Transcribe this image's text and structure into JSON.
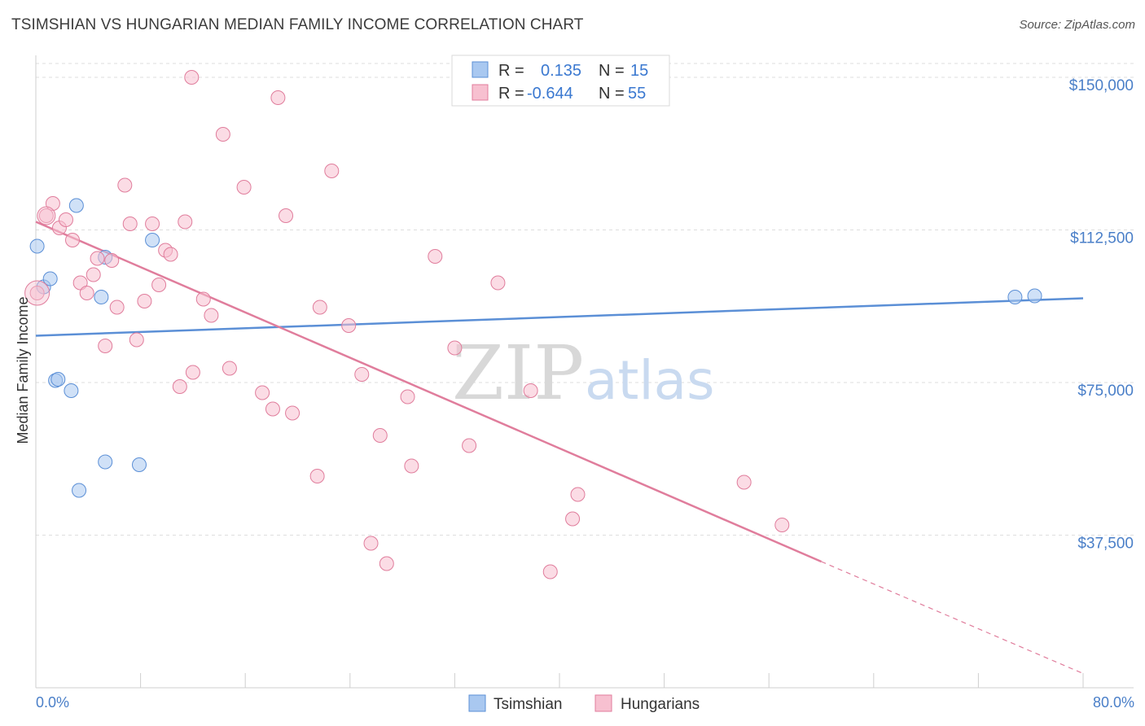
{
  "title": "TSIMSHIAN VS HUNGARIAN MEDIAN FAMILY INCOME CORRELATION CHART",
  "source": "Source: ZipAtlas.com",
  "watermark": {
    "zip": "ZIP",
    "atlas": "atlas"
  },
  "legend": {
    "r_label": "R =",
    "n_label": "N =",
    "rows": [
      {
        "name": "Tsimshian",
        "r": "0.135",
        "n": "15",
        "color": "#a9c8f0",
        "stroke": "#5b8fd6"
      },
      {
        "name": "Hungarians",
        "r": "-0.644",
        "n": "55",
        "color": "#f7c0d0",
        "stroke": "#e07d9c"
      }
    ]
  },
  "chart_data": {
    "type": "scatter",
    "title": "TSIMSHIAN VS HUNGARIAN MEDIAN FAMILY INCOME CORRELATION CHART",
    "xlabel": "",
    "ylabel": "Median Family Income",
    "xlim": [
      0,
      80
    ],
    "ylim": [
      0,
      155000
    ],
    "x_tick_labels": [
      "0.0%",
      "80.0%"
    ],
    "y_ticks": [
      37500,
      75000,
      112500,
      150000
    ],
    "y_tick_labels": [
      "$37,500",
      "$75,000",
      "$112,500",
      "$150,000"
    ],
    "grid": true,
    "series": [
      {
        "name": "Tsimshian",
        "color": "#5b8fd6",
        "points": [
          [
            0.1,
            108500
          ],
          [
            0.6,
            98500
          ],
          [
            1.1,
            100500
          ],
          [
            1.5,
            75500
          ],
          [
            1.7,
            75800
          ],
          [
            2.7,
            73000
          ],
          [
            3.1,
            118500
          ],
          [
            3.3,
            48500
          ],
          [
            5.3,
            105800
          ],
          [
            5.0,
            96000
          ],
          [
            5.3,
            55500
          ],
          [
            7.9,
            54800
          ],
          [
            8.9,
            110000
          ],
          [
            74.8,
            96000
          ],
          [
            76.3,
            96300
          ]
        ],
        "trend": {
          "x": [
            0,
            80
          ],
          "y": [
            86500,
            95700
          ]
        }
      },
      {
        "name": "Hungarians",
        "color": "#e07d9c",
        "points": [
          [
            0.1,
            97000
          ],
          [
            0.8,
            116000
          ],
          [
            1.3,
            119000
          ],
          [
            1.8,
            113000
          ],
          [
            2.3,
            115000
          ],
          [
            2.8,
            110000
          ],
          [
            3.4,
            99500
          ],
          [
            3.9,
            97000
          ],
          [
            4.4,
            101500
          ],
          [
            4.7,
            105500
          ],
          [
            5.3,
            84000
          ],
          [
            5.8,
            105000
          ],
          [
            6.2,
            93500
          ],
          [
            6.8,
            123500
          ],
          [
            7.2,
            114000
          ],
          [
            7.7,
            85500
          ],
          [
            8.3,
            95000
          ],
          [
            8.9,
            114000
          ],
          [
            9.4,
            99000
          ],
          [
            9.9,
            107500
          ],
          [
            10.3,
            106500
          ],
          [
            11.0,
            74000
          ],
          [
            11.4,
            114500
          ],
          [
            12.0,
            77500
          ],
          [
            12.8,
            95500
          ],
          [
            13.4,
            91500
          ],
          [
            14.3,
            136000
          ],
          [
            14.8,
            78500
          ],
          [
            15.9,
            123000
          ],
          [
            17.3,
            72500
          ],
          [
            18.1,
            68500
          ],
          [
            18.5,
            145000
          ],
          [
            19.1,
            116000
          ],
          [
            19.6,
            67500
          ],
          [
            11.9,
            150000
          ],
          [
            21.5,
            52000
          ],
          [
            21.7,
            93500
          ],
          [
            22.6,
            127000
          ],
          [
            23.9,
            89000
          ],
          [
            24.9,
            77000
          ],
          [
            25.6,
            35500
          ],
          [
            26.3,
            62000
          ],
          [
            26.8,
            30500
          ],
          [
            28.4,
            71500
          ],
          [
            28.7,
            54500
          ],
          [
            30.5,
            106000
          ],
          [
            32.0,
            83500
          ],
          [
            33.1,
            59500
          ],
          [
            35.3,
            99500
          ],
          [
            37.8,
            73000
          ],
          [
            39.3,
            28500
          ],
          [
            41.0,
            41500
          ],
          [
            41.4,
            47500
          ],
          [
            54.1,
            50500
          ],
          [
            57.0,
            40000
          ]
        ],
        "trend": {
          "x": [
            0,
            60
          ],
          "y": [
            114500,
            31000
          ]
        },
        "trend_dashed": {
          "x": [
            60,
            80
          ],
          "y": [
            31000,
            3500
          ]
        }
      }
    ]
  }
}
